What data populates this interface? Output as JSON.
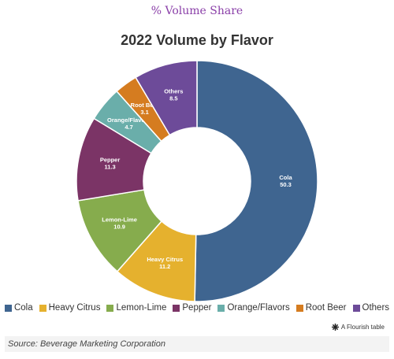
{
  "header": "% Volume Share",
  "chart_data": {
    "type": "donut",
    "title": "2022 Volume by Flavor",
    "categories": [
      "Cola",
      "Heavy Citrus",
      "Lemon-Lime",
      "Pepper",
      "Orange/Flavors",
      "Root Beer",
      "Others"
    ],
    "values": [
      50.3,
      11.2,
      10.9,
      11.3,
      4.7,
      3.1,
      8.5
    ],
    "colors": [
      "#3f6590",
      "#e5b12e",
      "#86ac4d",
      "#7b3466",
      "#6aaeaa",
      "#d57c20",
      "#6d4b99"
    ],
    "legend": "bottom"
  },
  "footer": {
    "credit": "A Flourish table",
    "source": "Source: Beverage Marketing Corporation"
  }
}
